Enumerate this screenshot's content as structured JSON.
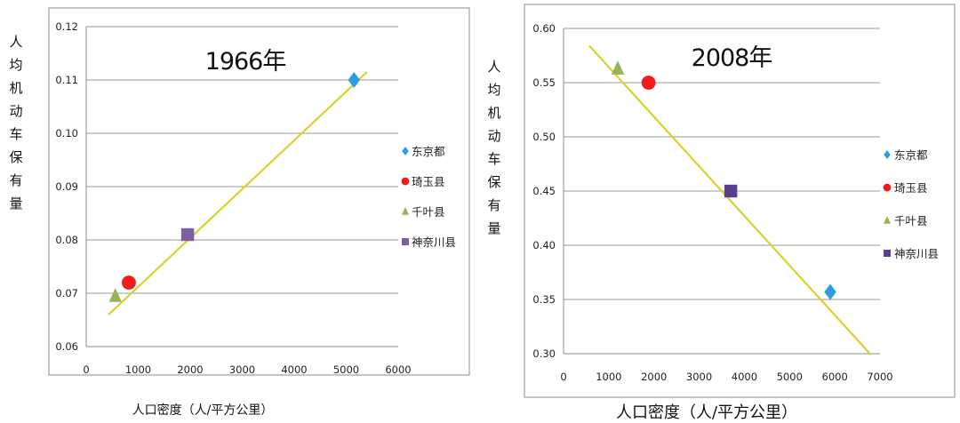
{
  "chart_data": [
    {
      "type": "scatter",
      "title": "1966年",
      "ylabel": "人均机动车保有量",
      "xlabel": "人口密度（人/平方公里）",
      "xlim": [
        0,
        6000
      ],
      "ylim": [
        0.06,
        0.12
      ],
      "x_ticks": [
        "0",
        "1000",
        "2000",
        "3000",
        "4000",
        "5000",
        "6000"
      ],
      "y_ticks": [
        "0.06",
        "0.07",
        "0.08",
        "0.09",
        "0.10",
        "0.11",
        "0.12"
      ],
      "grid": true,
      "legend_position": "right",
      "series": [
        {
          "name": "东京都",
          "marker": "diamond",
          "color": "#2b9ee0",
          "x": [
            5150
          ],
          "y": [
            0.11
          ]
        },
        {
          "name": "琦玉县",
          "marker": "circle",
          "color": "#ee1c1c",
          "x": [
            820
          ],
          "y": [
            0.072
          ]
        },
        {
          "name": "千叶县",
          "marker": "triangle",
          "color": "#98b25a",
          "x": [
            560
          ],
          "y": [
            0.0695
          ]
        },
        {
          "name": "神奈川县",
          "marker": "square",
          "color": "#7e5ea6",
          "x": [
            1950
          ],
          "y": [
            0.081
          ]
        }
      ],
      "trendline": {
        "color": "#d8d22a",
        "x": [
          430,
          5400
        ],
        "y": [
          0.066,
          0.1115
        ]
      }
    },
    {
      "type": "scatter",
      "title": "2008年",
      "ylabel": "人均机动车保有量",
      "xlabel": "人口密度（人/平方公里）",
      "xlim": [
        0,
        7000
      ],
      "ylim": [
        0.3,
        0.6
      ],
      "x_ticks": [
        "0",
        "1000",
        "2000",
        "3000",
        "4000",
        "5000",
        "6000",
        "7000"
      ],
      "y_ticks": [
        "0.30",
        "0.35",
        "0.40",
        "0.45",
        "0.50",
        "0.55",
        "0.60"
      ],
      "grid": true,
      "legend_position": "right",
      "series": [
        {
          "name": "东京都",
          "marker": "diamond",
          "color": "#2b9ee0",
          "x": [
            5900
          ],
          "y": [
            0.357
          ]
        },
        {
          "name": "琦玉县",
          "marker": "circle",
          "color": "#ee1c1c",
          "x": [
            1880
          ],
          "y": [
            0.55
          ]
        },
        {
          "name": "千叶县",
          "marker": "triangle",
          "color": "#98b25a",
          "x": [
            1200
          ],
          "y": [
            0.563
          ]
        },
        {
          "name": "神奈川县",
          "marker": "square",
          "color": "#5c3d8f",
          "x": [
            3700
          ],
          "y": [
            0.45
          ]
        }
      ],
      "trendline": {
        "color": "#d8d22a",
        "x": [
          570,
          6800
        ],
        "y": [
          0.584,
          0.299
        ]
      }
    }
  ]
}
